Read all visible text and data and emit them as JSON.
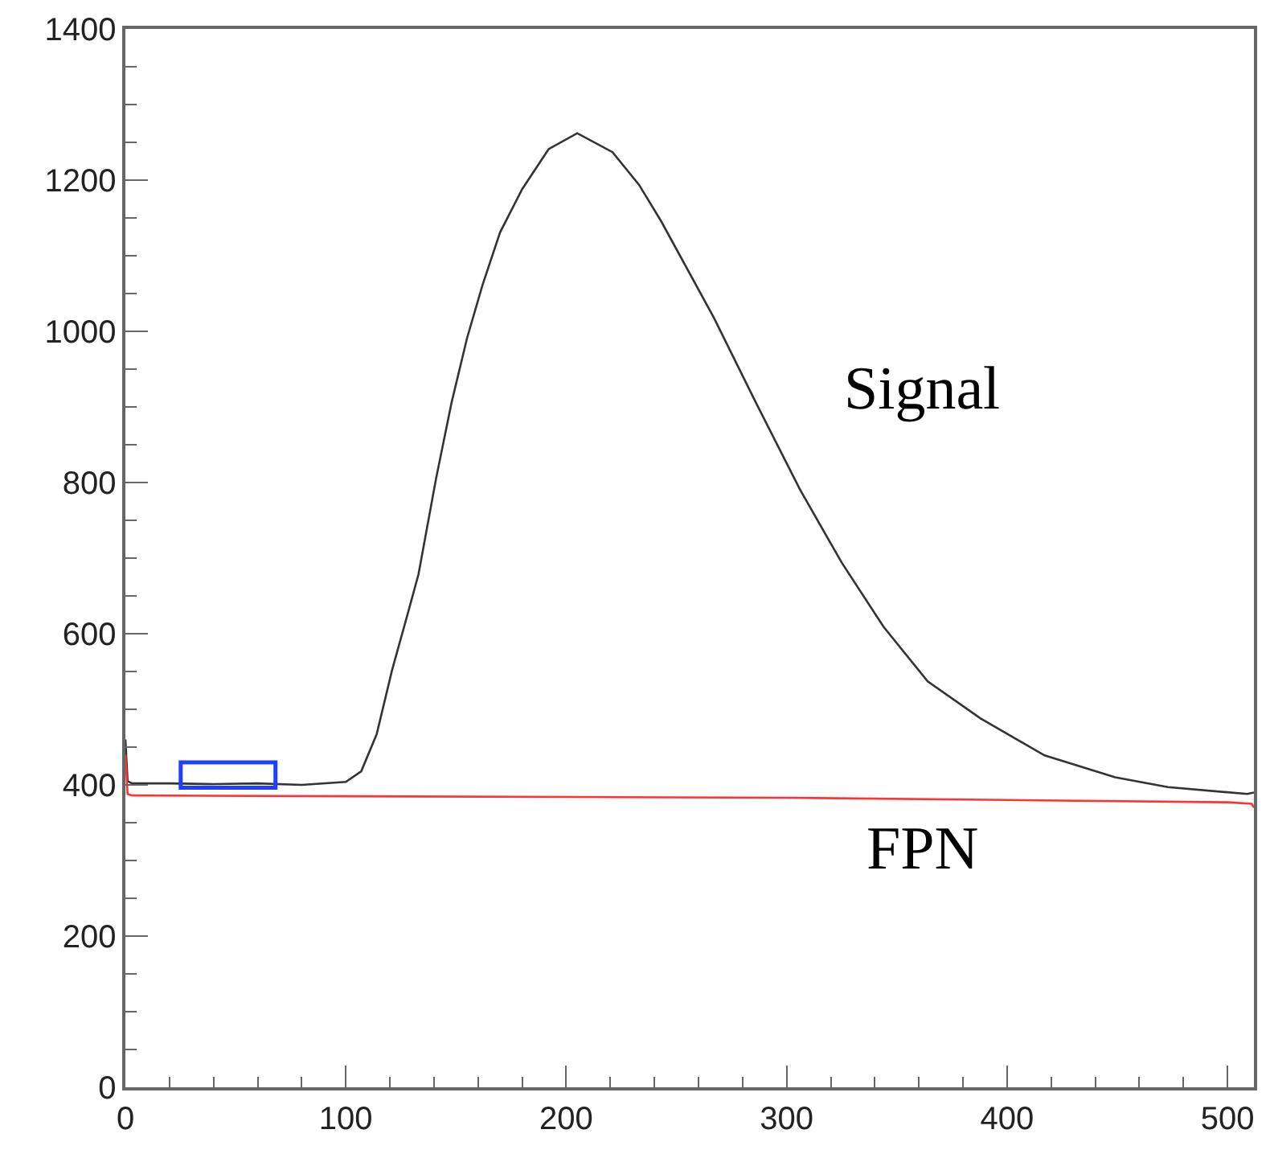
{
  "chart_data": {
    "type": "line",
    "xlim": [
      0,
      512
    ],
    "ylim": [
      0,
      1400
    ],
    "xticks": [
      0,
      100,
      200,
      300,
      400,
      500,
      {
        "value": 20,
        "label": null
      },
      {
        "value": 40,
        "label": null
      },
      {
        "value": 60,
        "label": null
      },
      {
        "value": 80,
        "label": null
      },
      {
        "value": 120,
        "label": null
      },
      {
        "value": 140,
        "label": null
      },
      {
        "value": 160,
        "label": null
      },
      {
        "value": 180,
        "label": null
      },
      {
        "value": 220,
        "label": null
      },
      {
        "value": 240,
        "label": null
      },
      {
        "value": 260,
        "label": null
      },
      {
        "value": 280,
        "label": null
      },
      {
        "value": 320,
        "label": null
      },
      {
        "value": 340,
        "label": null
      },
      {
        "value": 360,
        "label": null
      },
      {
        "value": 380,
        "label": null
      },
      {
        "value": 420,
        "label": null
      },
      {
        "value": 440,
        "label": null
      },
      {
        "value": 460,
        "label": null
      },
      {
        "value": 480,
        "label": null
      }
    ],
    "yticks": [
      0,
      200,
      400,
      600,
      800,
      1000,
      1200,
      1400,
      {
        "value": 50,
        "label": null
      },
      {
        "value": 100,
        "label": null
      },
      {
        "value": 150,
        "label": null
      },
      {
        "value": 250,
        "label": null
      },
      {
        "value": 300,
        "label": null
      },
      {
        "value": 350,
        "label": null
      },
      {
        "value": 450,
        "label": null
      },
      {
        "value": 500,
        "label": null
      },
      {
        "value": 550,
        "label": null
      },
      {
        "value": 650,
        "label": null
      },
      {
        "value": 700,
        "label": null
      },
      {
        "value": 750,
        "label": null
      },
      {
        "value": 850,
        "label": null
      },
      {
        "value": 900,
        "label": null
      },
      {
        "value": 950,
        "label": null
      },
      {
        "value": 1050,
        "label": null
      },
      {
        "value": 1100,
        "label": null
      },
      {
        "value": 1150,
        "label": null
      },
      {
        "value": 1250,
        "label": null
      },
      {
        "value": 1300,
        "label": null
      },
      {
        "value": 1350,
        "label": null
      }
    ],
    "legend": false,
    "marker": "none",
    "line_style": "solid",
    "series": [
      {
        "name": "Signal",
        "color": "#333333",
        "x": [
          0,
          1,
          3,
          20,
          40,
          60,
          80,
          100,
          107,
          114,
          121,
          129,
          133,
          141,
          148,
          155,
          162,
          170,
          180,
          192,
          205,
          221,
          233,
          243,
          267,
          286,
          306,
          325,
          344,
          364,
          388,
          417,
          449,
          473,
          509,
          512
        ],
        "values": [
          460,
          405,
          402,
          402,
          401,
          402,
          400,
          404,
          418,
          467,
          552,
          636,
          679,
          806,
          906,
          991,
          1061,
          1131,
          1188,
          1241,
          1262,
          1237,
          1194,
          1146,
          1018,
          906,
          791,
          694,
          609,
          537,
          488,
          439,
          410,
          397,
          388,
          390
        ]
      },
      {
        "name": "FPN",
        "color": "#ff3333",
        "x": [
          0,
          1,
          3,
          100,
          200,
          300,
          400,
          500,
          511,
          512
        ],
        "values": [
          440,
          388,
          386,
          385,
          384,
          383,
          380,
          377,
          375,
          370
        ]
      }
    ]
  }
}
